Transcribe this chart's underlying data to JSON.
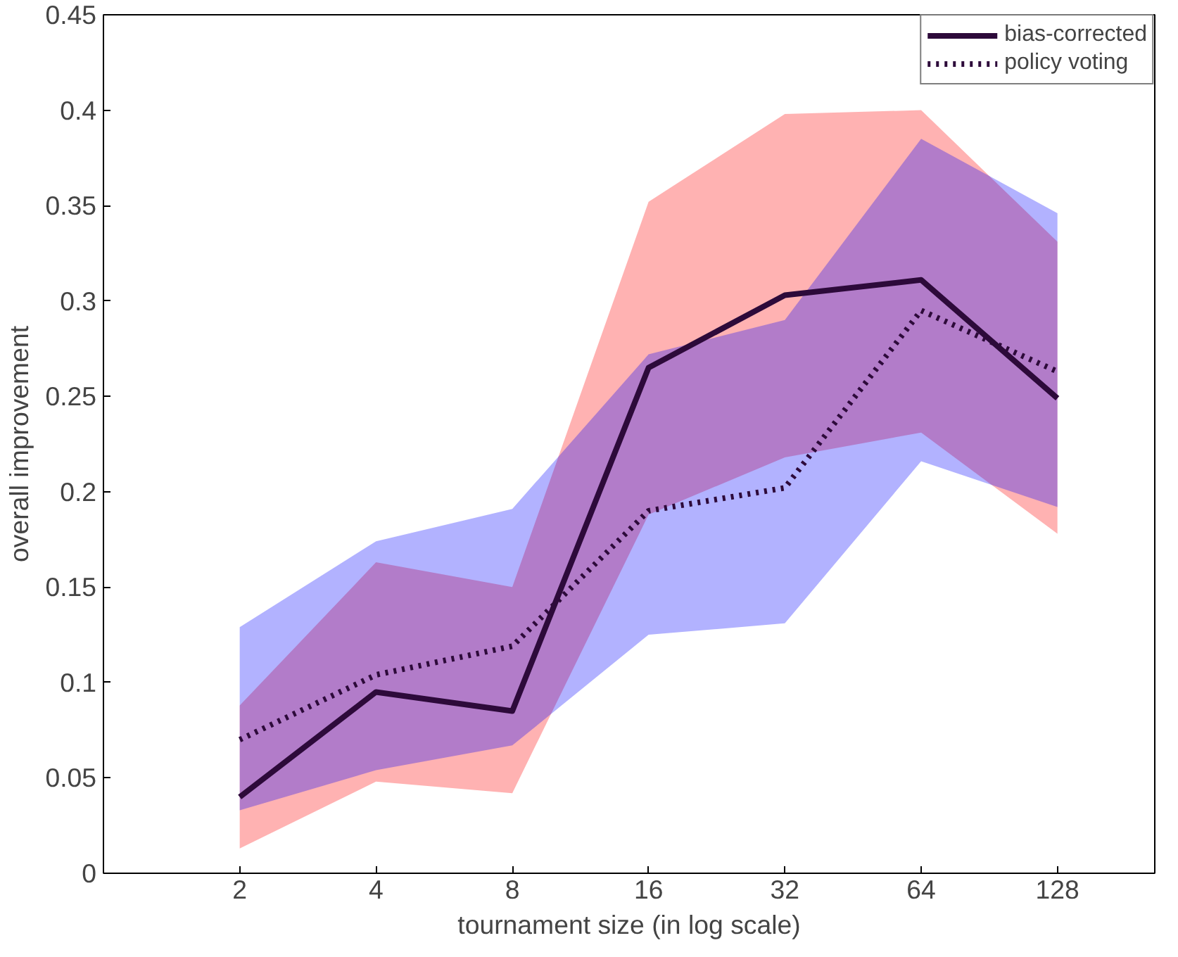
{
  "chart_data": {
    "type": "line",
    "xlabel": "tournament size (in log scale)",
    "ylabel": "overall improvement",
    "log": "x",
    "x": [
      2,
      4,
      8,
      16,
      32,
      64,
      128
    ],
    "xlim": [
      1,
      210
    ],
    "xticks": [
      2,
      4,
      8,
      16,
      32,
      64,
      128
    ],
    "ylim": [
      0,
      0.45
    ],
    "yticks": [
      0,
      0.05,
      0.1,
      0.15,
      0.2,
      0.25,
      0.3,
      0.35,
      0.4,
      0.45
    ],
    "grid": false,
    "legend": "top right",
    "marker": "none",
    "series": [
      {
        "name": "bias-corrected",
        "color": "#2d0a3a",
        "line_style": "solid",
        "values": [
          0.04,
          0.095,
          0.085,
          0.265,
          0.303,
          0.311,
          0.249
        ],
        "lower": [
          0.013,
          0.048,
          0.042,
          0.188,
          0.218,
          0.231,
          0.178
        ],
        "upper": [
          0.088,
          0.163,
          0.15,
          0.352,
          0.398,
          0.4,
          0.331
        ]
      },
      {
        "name": "policy voting",
        "color": "#2d0a3a",
        "line_style": "dotted",
        "values": [
          0.07,
          0.104,
          0.119,
          0.19,
          0.202,
          0.295,
          0.263
        ],
        "lower": [
          0.033,
          0.054,
          0.067,
          0.125,
          0.131,
          0.216,
          0.192
        ],
        "upper": [
          0.129,
          0.174,
          0.191,
          0.272,
          0.29,
          0.385,
          0.346
        ]
      }
    ]
  }
}
